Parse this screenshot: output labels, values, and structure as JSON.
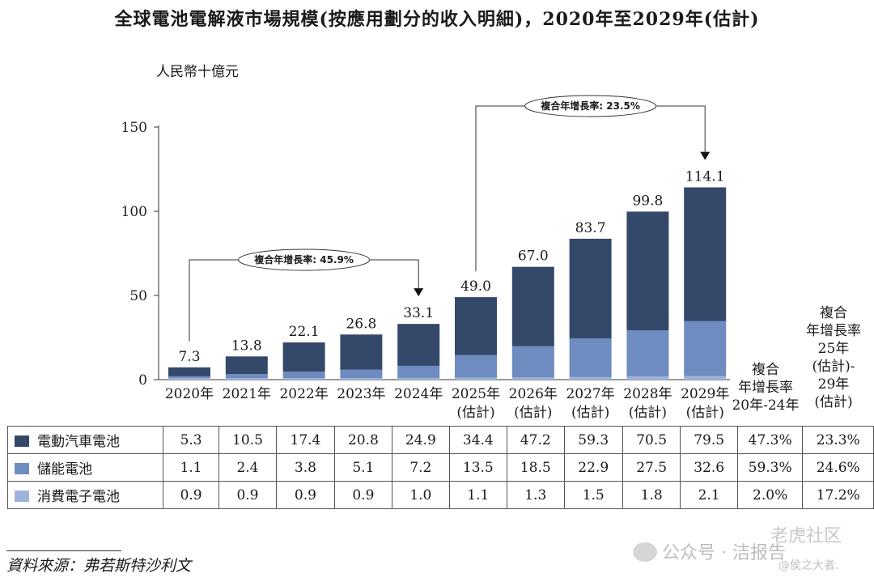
{
  "title": "全球電池電解液市場規模(按應用劃分的收入明細)，2020年至2029年(估計)",
  "unit_label": "人民幣十億元",
  "colors": {
    "ev": "#34496a",
    "storage": "#6e8cc0",
    "consumer": "#9eb3da"
  },
  "chart_data": {
    "type": "bar",
    "stacked": true,
    "ylim": [
      0,
      150
    ],
    "yticks": [
      "0",
      "50",
      "100",
      "150"
    ],
    "categories": [
      [
        "2020年"
      ],
      [
        "2021年"
      ],
      [
        "2022年"
      ],
      [
        "2023年"
      ],
      [
        "2024年"
      ],
      [
        "2025年",
        "(估計)"
      ],
      [
        "2026年",
        "(估計)"
      ],
      [
        "2027年",
        "(估計)"
      ],
      [
        "2028年",
        "(估計)"
      ],
      [
        "2029年",
        "(估計)"
      ]
    ],
    "totals": [
      "7.3",
      "13.8",
      "22.1",
      "26.8",
      "33.1",
      "49.0",
      "67.0",
      "83.7",
      "99.8",
      "114.1"
    ],
    "series": [
      {
        "name": "電動汽車電池",
        "values": [
          5.3,
          10.5,
          17.4,
          20.8,
          24.9,
          34.4,
          47.2,
          59.3,
          70.5,
          79.5
        ],
        "cagr_2024": "47.3%",
        "cagr_2529": "23.3%"
      },
      {
        "name": "儲能電池",
        "values": [
          1.1,
          2.4,
          3.8,
          5.1,
          7.2,
          13.5,
          18.5,
          22.9,
          27.5,
          32.6
        ],
        "cagr_2024": "59.3%",
        "cagr_2529": "24.6%"
      },
      {
        "name": "消費電子電池",
        "values": [
          0.9,
          0.9,
          0.9,
          0.9,
          1.0,
          1.1,
          1.3,
          1.5,
          1.8,
          2.1
        ],
        "cagr_2024": "2.0%",
        "cagr_2529": "17.2%"
      }
    ],
    "annotations": [
      {
        "text": "複合年增長率: 45.9%",
        "from": "2020年",
        "to": "2024年"
      },
      {
        "text": "複合年增長率: 23.5%",
        "from": "2025年",
        "to": "2029年"
      }
    ]
  },
  "cagr_headers": {
    "h1": [
      "複合",
      "年增長率",
      "20年-24年"
    ],
    "h2": [
      "複合",
      "年增長率",
      "25年",
      "(估計)-",
      "29年",
      "(估計)"
    ]
  },
  "table_values": [
    [
      "5.3",
      "10.5",
      "17.4",
      "20.8",
      "24.9",
      "34.4",
      "47.2",
      "59.3",
      "70.5",
      "79.5",
      "47.3%",
      "23.3%"
    ],
    [
      "1.1",
      "2.4",
      "3.8",
      "5.1",
      "7.2",
      "13.5",
      "18.5",
      "22.9",
      "27.5",
      "32.6",
      "59.3%",
      "24.6%"
    ],
    [
      "0.9",
      "0.9",
      "0.9",
      "0.9",
      "1.0",
      "1.1",
      "1.3",
      "1.5",
      "1.8",
      "2.1",
      "2.0%",
      "17.2%"
    ]
  ],
  "source": "資料來源：弗若斯特沙利文",
  "watermark": {
    "line1": "公众号 · 洁报告",
    "line2": "老虎社区",
    "line3": "@侯之大者."
  }
}
